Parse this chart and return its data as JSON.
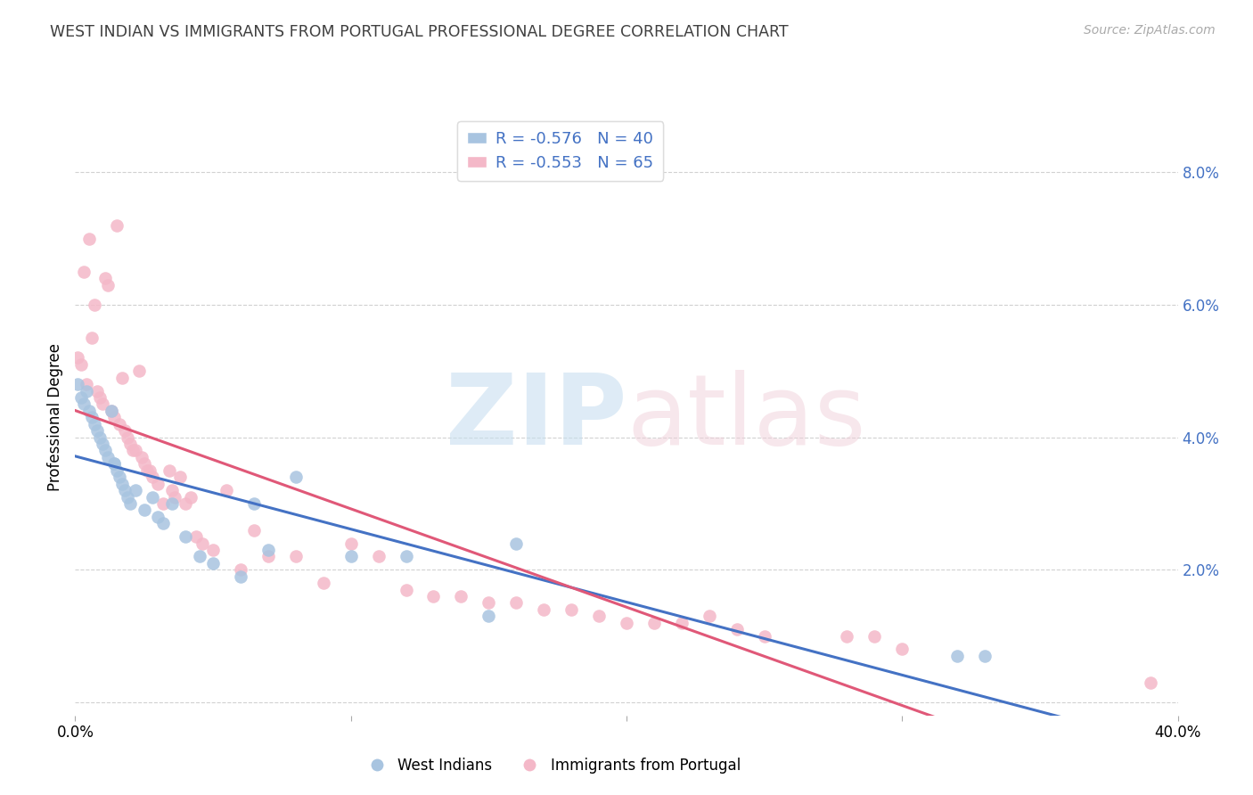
{
  "title": "WEST INDIAN VS IMMIGRANTS FROM PORTUGAL PROFESSIONAL DEGREE CORRELATION CHART",
  "source": "Source: ZipAtlas.com",
  "ylabel": "Professional Degree",
  "xlim": [
    0.0,
    0.4
  ],
  "ylim": [
    -0.002,
    0.088
  ],
  "yticks": [
    0.0,
    0.02,
    0.04,
    0.06,
    0.08
  ],
  "ytick_labels_right": [
    "",
    "2.0%",
    "4.0%",
    "6.0%",
    "8.0%"
  ],
  "xticks": [
    0.0,
    0.1,
    0.2,
    0.3,
    0.4
  ],
  "xtick_labels": [
    "0.0%",
    "",
    "",
    "",
    "40.0%"
  ],
  "color_blue": "#a8c4e0",
  "color_pink": "#f4b8c8",
  "line_color_blue": "#4472c4",
  "line_color_pink": "#e05878",
  "title_color": "#404040",
  "legend_color": "#4472c4",
  "blue_scatter_x": [
    0.001,
    0.002,
    0.003,
    0.004,
    0.005,
    0.006,
    0.007,
    0.008,
    0.009,
    0.01,
    0.011,
    0.012,
    0.013,
    0.014,
    0.015,
    0.016,
    0.017,
    0.018,
    0.019,
    0.02,
    0.022,
    0.025,
    0.028,
    0.03,
    0.032,
    0.035,
    0.04,
    0.045,
    0.05,
    0.06,
    0.065,
    0.07,
    0.08,
    0.1,
    0.12,
    0.15,
    0.32,
    0.33,
    0.16,
    0.014
  ],
  "blue_scatter_y": [
    0.048,
    0.046,
    0.045,
    0.047,
    0.044,
    0.043,
    0.042,
    0.041,
    0.04,
    0.039,
    0.038,
    0.037,
    0.044,
    0.036,
    0.035,
    0.034,
    0.033,
    0.032,
    0.031,
    0.03,
    0.032,
    0.029,
    0.031,
    0.028,
    0.027,
    0.03,
    0.025,
    0.022,
    0.021,
    0.019,
    0.03,
    0.023,
    0.034,
    0.022,
    0.022,
    0.013,
    0.007,
    0.007,
    0.024,
    0.036
  ],
  "pink_scatter_x": [
    0.001,
    0.002,
    0.003,
    0.004,
    0.005,
    0.006,
    0.007,
    0.008,
    0.009,
    0.01,
    0.011,
    0.012,
    0.013,
    0.014,
    0.015,
    0.016,
    0.017,
    0.018,
    0.019,
    0.02,
    0.021,
    0.022,
    0.023,
    0.024,
    0.025,
    0.026,
    0.027,
    0.028,
    0.03,
    0.032,
    0.034,
    0.035,
    0.036,
    0.038,
    0.04,
    0.042,
    0.044,
    0.046,
    0.05,
    0.055,
    0.06,
    0.065,
    0.07,
    0.08,
    0.09,
    0.1,
    0.11,
    0.12,
    0.13,
    0.14,
    0.15,
    0.16,
    0.17,
    0.18,
    0.19,
    0.2,
    0.21,
    0.22,
    0.23,
    0.24,
    0.25,
    0.28,
    0.29,
    0.39,
    0.3
  ],
  "pink_scatter_y": [
    0.052,
    0.051,
    0.065,
    0.048,
    0.07,
    0.055,
    0.06,
    0.047,
    0.046,
    0.045,
    0.064,
    0.063,
    0.044,
    0.043,
    0.072,
    0.042,
    0.049,
    0.041,
    0.04,
    0.039,
    0.038,
    0.038,
    0.05,
    0.037,
    0.036,
    0.035,
    0.035,
    0.034,
    0.033,
    0.03,
    0.035,
    0.032,
    0.031,
    0.034,
    0.03,
    0.031,
    0.025,
    0.024,
    0.023,
    0.032,
    0.02,
    0.026,
    0.022,
    0.022,
    0.018,
    0.024,
    0.022,
    0.017,
    0.016,
    0.016,
    0.015,
    0.015,
    0.014,
    0.014,
    0.013,
    0.012,
    0.012,
    0.012,
    0.013,
    0.011,
    0.01,
    0.01,
    0.01,
    0.003,
    0.008
  ]
}
